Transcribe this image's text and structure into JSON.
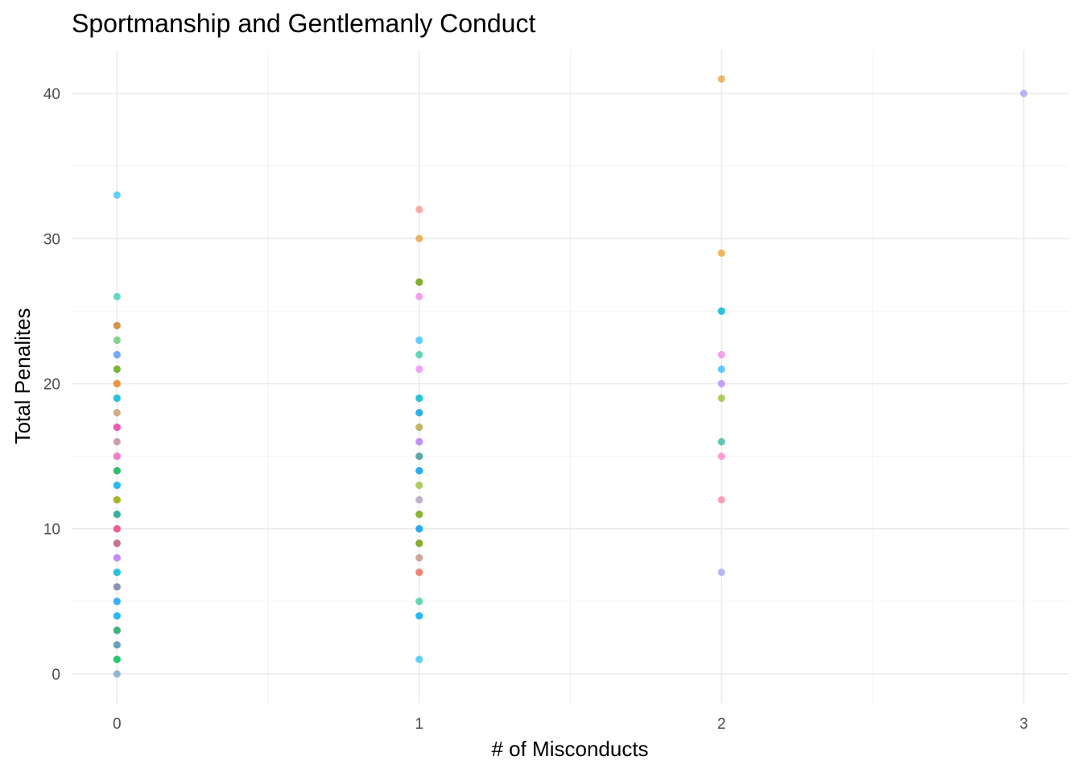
{
  "chart_data": {
    "type": "scatter",
    "title": "Sportmanship and Gentlemanly Conduct",
    "xlabel": "# of Misconducts",
    "ylabel": "Total Penalites",
    "xlim": [
      -0.15,
      3.15
    ],
    "ylim": [
      -2,
      43
    ],
    "x_ticks": [
      0,
      1,
      2,
      3
    ],
    "y_ticks": [
      0,
      10,
      20,
      30,
      40
    ],
    "grid": true,
    "legend": "none",
    "point_opacity": 0.6,
    "points": [
      {
        "x": 0,
        "y": 33,
        "color": "#00b4f0"
      },
      {
        "x": 0,
        "y": 26,
        "color": "#00c1a8"
      },
      {
        "x": 0,
        "y": 24,
        "color": "#e08b00"
      },
      {
        "x": 0,
        "y": 24,
        "color": "#c77c3a"
      },
      {
        "x": 0,
        "y": 23,
        "color": "#3cb44b"
      },
      {
        "x": 0,
        "y": 22,
        "color": "#4e8ef7"
      },
      {
        "x": 0,
        "y": 22,
        "color": "#619cff"
      },
      {
        "x": 0,
        "y": 21,
        "color": "#2a9d3a"
      },
      {
        "x": 0,
        "y": 21,
        "color": "#7cae00"
      },
      {
        "x": 0,
        "y": 20,
        "color": "#f8766d"
      },
      {
        "x": 0,
        "y": 20,
        "color": "#e58700"
      },
      {
        "x": 0,
        "y": 19,
        "color": "#00a9ff"
      },
      {
        "x": 0,
        "y": 19,
        "color": "#00bfc4"
      },
      {
        "x": 0,
        "y": 18,
        "color": "#b0792e"
      },
      {
        "x": 0,
        "y": 17,
        "color": "#f564e3"
      },
      {
        "x": 0,
        "y": 17,
        "color": "#e7298a"
      },
      {
        "x": 0,
        "y": 16,
        "color": "#b0627a"
      },
      {
        "x": 0,
        "y": 15,
        "color": "#d36ec6"
      },
      {
        "x": 0,
        "y": 15,
        "color": "#ff61c3"
      },
      {
        "x": 0,
        "y": 14,
        "color": "#2f9e8f"
      },
      {
        "x": 0,
        "y": 14,
        "color": "#00ba38"
      },
      {
        "x": 0,
        "y": 13,
        "color": "#00a9ff"
      },
      {
        "x": 0,
        "y": 13,
        "color": "#00b0f6"
      },
      {
        "x": 0,
        "y": 12,
        "color": "#7cae00"
      },
      {
        "x": 0,
        "y": 12,
        "color": "#a3a500"
      },
      {
        "x": 0,
        "y": 11,
        "color": "#44a3a3"
      },
      {
        "x": 0,
        "y": 11,
        "color": "#00a087"
      },
      {
        "x": 0,
        "y": 10,
        "color": "#f8766d"
      },
      {
        "x": 0,
        "y": 10,
        "color": "#e7298a"
      },
      {
        "x": 0,
        "y": 9,
        "color": "#c15a7a"
      },
      {
        "x": 0,
        "y": 9,
        "color": "#b0627a"
      },
      {
        "x": 0,
        "y": 8,
        "color": "#9e6bf2"
      },
      {
        "x": 0,
        "y": 8,
        "color": "#c77cff"
      },
      {
        "x": 0,
        "y": 7,
        "color": "#00a9ff"
      },
      {
        "x": 0,
        "y": 7,
        "color": "#00bfc4"
      },
      {
        "x": 0,
        "y": 6,
        "color": "#5b8bb5"
      },
      {
        "x": 0,
        "y": 6,
        "color": "#7f7f9f"
      },
      {
        "x": 0,
        "y": 5,
        "color": "#4e8ef7"
      },
      {
        "x": 0,
        "y": 5,
        "color": "#00a9ff"
      },
      {
        "x": 0,
        "y": 4,
        "color": "#00a9ff"
      },
      {
        "x": 0,
        "y": 4,
        "color": "#00b0f6"
      },
      {
        "x": 0,
        "y": 3,
        "color": "#53b400"
      },
      {
        "x": 0,
        "y": 3,
        "color": "#00a087"
      },
      {
        "x": 0,
        "y": 2,
        "color": "#2f9e8f"
      },
      {
        "x": 0,
        "y": 2,
        "color": "#5b8bb5"
      },
      {
        "x": 0,
        "y": 1,
        "color": "#00c1a8"
      },
      {
        "x": 0,
        "y": 1,
        "color": "#00ba38"
      },
      {
        "x": 0,
        "y": 0,
        "color": "#5b8bb5"
      },
      {
        "x": 1,
        "y": 32,
        "color": "#f8766d"
      },
      {
        "x": 1,
        "y": 30,
        "color": "#e08b00"
      },
      {
        "x": 1,
        "y": 27,
        "color": "#4d7c0f"
      },
      {
        "x": 1,
        "y": 27,
        "color": "#7cae00"
      },
      {
        "x": 1,
        "y": 26,
        "color": "#f564e3"
      },
      {
        "x": 1,
        "y": 23,
        "color": "#00b0f6"
      },
      {
        "x": 1,
        "y": 22,
        "color": "#00c08b"
      },
      {
        "x": 1,
        "y": 21,
        "color": "#e76bf3"
      },
      {
        "x": 1,
        "y": 19,
        "color": "#00a9ff"
      },
      {
        "x": 1,
        "y": 19,
        "color": "#00bfc4"
      },
      {
        "x": 1,
        "y": 18,
        "color": "#1f8ea3"
      },
      {
        "x": 1,
        "y": 18,
        "color": "#00a9ff"
      },
      {
        "x": 1,
        "y": 17,
        "color": "#9f8a00"
      },
      {
        "x": 1,
        "y": 16,
        "color": "#8f7fd6"
      },
      {
        "x": 1,
        "y": 16,
        "color": "#c77cff"
      },
      {
        "x": 1,
        "y": 15,
        "color": "#5b8bb5"
      },
      {
        "x": 1,
        "y": 15,
        "color": "#2f9e8f"
      },
      {
        "x": 1,
        "y": 14,
        "color": "#0b84e0"
      },
      {
        "x": 1,
        "y": 14,
        "color": "#00a9ff"
      },
      {
        "x": 1,
        "y": 13,
        "color": "#7cae00"
      },
      {
        "x": 1,
        "y": 12,
        "color": "#9f7fa6"
      },
      {
        "x": 1,
        "y": 11,
        "color": "#6b9a24"
      },
      {
        "x": 1,
        "y": 11,
        "color": "#7cae00"
      },
      {
        "x": 1,
        "y": 10,
        "color": "#0b84e0"
      },
      {
        "x": 1,
        "y": 10,
        "color": "#00a9ff"
      },
      {
        "x": 1,
        "y": 9,
        "color": "#4d7c0f"
      },
      {
        "x": 1,
        "y": 9,
        "color": "#7cae00"
      },
      {
        "x": 1,
        "y": 8,
        "color": "#b0705a"
      },
      {
        "x": 1,
        "y": 7,
        "color": "#e7542d"
      },
      {
        "x": 1,
        "y": 7,
        "color": "#f8766d"
      },
      {
        "x": 1,
        "y": 5,
        "color": "#00c08b"
      },
      {
        "x": 1,
        "y": 4,
        "color": "#00a9ff"
      },
      {
        "x": 1,
        "y": 4,
        "color": "#00b0f6"
      },
      {
        "x": 1,
        "y": 1,
        "color": "#00b0f6"
      },
      {
        "x": 2,
        "y": 41,
        "color": "#e08b00"
      },
      {
        "x": 2,
        "y": 29,
        "color": "#e08b00"
      },
      {
        "x": 2,
        "y": 25,
        "color": "#00a9ff"
      },
      {
        "x": 2,
        "y": 25,
        "color": "#00bfc4"
      },
      {
        "x": 2,
        "y": 22,
        "color": "#f564e3"
      },
      {
        "x": 2,
        "y": 21,
        "color": "#00a9ff"
      },
      {
        "x": 2,
        "y": 20,
        "color": "#9e6bf2"
      },
      {
        "x": 2,
        "y": 19,
        "color": "#7cae00"
      },
      {
        "x": 2,
        "y": 16,
        "color": "#00a087"
      },
      {
        "x": 2,
        "y": 15,
        "color": "#ff61c3"
      },
      {
        "x": 2,
        "y": 12,
        "color": "#f8668d"
      },
      {
        "x": 2,
        "y": 7,
        "color": "#8c8cf2"
      },
      {
        "x": 3,
        "y": 40,
        "color": "#8c8cf2"
      }
    ]
  },
  "x_tick_labels": [
    "0",
    "1",
    "2",
    "3"
  ],
  "y_tick_labels": [
    "0",
    "10",
    "20",
    "30",
    "40"
  ]
}
